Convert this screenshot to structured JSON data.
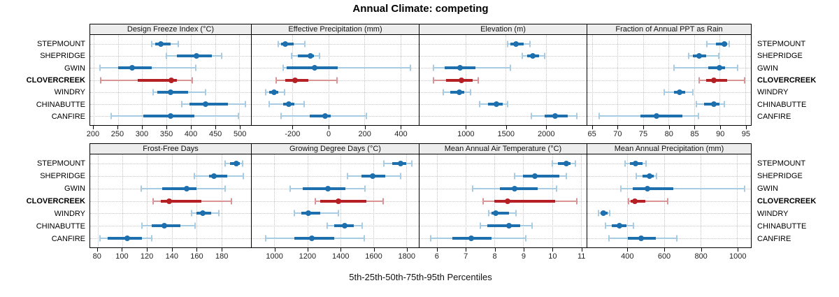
{
  "chart_data": {
    "type": "dot-interval-trellis",
    "title": "Annual Climate: competing",
    "xlabel": "5th-25th-50th-75th-95th Percentiles",
    "percentiles": [
      5,
      25,
      50,
      75,
      95
    ],
    "sites": [
      "STEPMOUNT",
      "SHEPRIDGE",
      "GWIN",
      "CLOVERCREEK",
      "WINDRY",
      "CHINABUTTE",
      "CANFIRE"
    ],
    "highlight_site": "CLOVERCREEK",
    "colors": {
      "blue": "#1d6fae",
      "blue_light": "#a8cce4",
      "red": "#b52025",
      "red_light": "#d99595",
      "strip_bg": "#ededed",
      "grid": "#c6c6c6"
    },
    "legend": "grid on, dotted; each row: 5th-95th light whisker with end caps, 25th-75th thick bar, dot at median",
    "panels": [
      {
        "title": "Design Freeze Index (°C)",
        "grid_row": 0,
        "grid_col": 0,
        "xlim": [
          193,
          524
        ],
        "ticks": [
          200,
          250,
          300,
          350,
          400,
          450,
          500
        ],
        "values": {
          "STEPMOUNT": [
            319,
            327,
            338,
            359,
            375
          ],
          "SHEPRIDGE": [
            350,
            371,
            412,
            443,
            464
          ],
          "GWIN": [
            213,
            250,
            280,
            319,
            410
          ],
          "CLOVERCREEK": [
            214,
            291,
            360,
            372,
            403
          ],
          "WINDRY": [
            322,
            331,
            358,
            395,
            430
          ],
          "CHINABUTTE": [
            382,
            398,
            430,
            476,
            513
          ],
          "CANFIRE": [
            236,
            302,
            358,
            407,
            498
          ]
        }
      },
      {
        "title": "Effective Precipitation (mm)",
        "grid_row": 0,
        "grid_col": 1,
        "xlim": [
          -426,
          503
        ],
        "ticks": [
          -200,
          0,
          200,
          400
        ],
        "values": {
          "STEPMOUNT": [
            -278,
            -262,
            -238,
            -192,
            -130
          ],
          "SHEPRIDGE": [
            -206,
            -168,
            -100,
            -80,
            -50
          ],
          "GWIN": [
            -250,
            -232,
            -77,
            51,
            458
          ],
          "CLOVERCREEK": [
            -290,
            -238,
            -185,
            -110,
            50
          ],
          "WINDRY": [
            -348,
            -329,
            -303,
            -277,
            -245
          ],
          "CHINABUTTE": [
            -330,
            -252,
            -219,
            -187,
            -135
          ],
          "CANFIRE": [
            -264,
            -103,
            -19,
            13,
            213
          ]
        }
      },
      {
        "title": "Elevation (m)",
        "grid_row": 0,
        "grid_col": 2,
        "xlim": [
          423,
          2511
        ],
        "ticks": [
          1000,
          1500,
          2000
        ],
        "values": {
          "STEPMOUNT": [
            1520,
            1560,
            1630,
            1725,
            1800
          ],
          "SHEPRIDGE": [
            1710,
            1770,
            1840,
            1915,
            1985
          ],
          "GWIN": [
            600,
            740,
            930,
            1120,
            1560
          ],
          "CLOVERCREEK": [
            600,
            755,
            945,
            1090,
            1160
          ],
          "WINDRY": [
            720,
            810,
            920,
            985,
            1065
          ],
          "CHINABUTTE": [
            1175,
            1275,
            1385,
            1465,
            1520
          ],
          "CANFIRE": [
            1825,
            1985,
            2115,
            2275,
            2390
          ]
        }
      },
      {
        "title": "Fraction of Annual PPT as Rain",
        "grid_row": 0,
        "grid_col": 3,
        "xlim": [
          64.1,
          96.1
        ],
        "ticks": [
          65,
          70,
          75,
          80,
          85,
          90,
          95
        ],
        "values": {
          "STEPMOUNT": [
            87.5,
            89.3,
            90.9,
            91.4,
            91.8
          ],
          "SHEPRIDGE": [
            83.9,
            84.8,
            86.0,
            87.3,
            89.8
          ],
          "GWIN": [
            81.0,
            87.7,
            89.9,
            91.0,
            93.5
          ],
          "CLOVERCREEK": [
            86.0,
            87.3,
            88.9,
            91.4,
            94.9
          ],
          "WINDRY": [
            79.1,
            81.1,
            82.1,
            83.2,
            84.8
          ],
          "CHINABUTTE": [
            85.5,
            87.0,
            88.9,
            90.0,
            90.9
          ],
          "CANFIRE": [
            66.4,
            74.5,
            77.7,
            82.7,
            85.8
          ]
        }
      },
      {
        "title": "Frost-Free Days",
        "grid_row": 1,
        "grid_col": 0,
        "xlim": [
          74,
          204
        ],
        "ticks": [
          80,
          100,
          120,
          140,
          160,
          180
        ],
        "values": {
          "STEPMOUNT": [
            183,
            187,
            192,
            195,
            197
          ],
          "SHEPRIDGE": [
            158,
            170,
            174,
            185,
            198
          ],
          "GWIN": [
            115,
            132,
            152,
            160,
            183
          ],
          "CLOVERCREEK": [
            125,
            131,
            138,
            164,
            188
          ],
          "WINDRY": [
            156,
            160,
            165,
            172,
            178
          ],
          "CHINABUTTE": [
            116,
            124,
            134,
            147,
            159
          ],
          "CANFIRE": [
            82,
            88,
            104,
            116,
            124
          ]
        }
      },
      {
        "title": "Growing Degree Days (°C)",
        "grid_row": 1,
        "grid_col": 1,
        "xlim": [
          862,
          1877
        ],
        "ticks": [
          1000,
          1200,
          1400,
          1600,
          1800
        ],
        "values": {
          "STEPMOUNT": [
            1665,
            1715,
            1765,
            1800,
            1835
          ],
          "SHEPRIDGE": [
            1445,
            1530,
            1598,
            1672,
            1765
          ],
          "GWIN": [
            1095,
            1172,
            1325,
            1432,
            1548
          ],
          "CLOVERCREEK": [
            1247,
            1277,
            1388,
            1560,
            1662
          ],
          "WINDRY": [
            1123,
            1165,
            1205,
            1277,
            1390
          ],
          "CHINABUTTE": [
            1320,
            1362,
            1426,
            1482,
            1531
          ],
          "CANFIRE": [
            945,
            1123,
            1228,
            1362,
            1546
          ]
        }
      },
      {
        "title": "Mean Annual Air Temperature (°C)",
        "grid_row": 1,
        "grid_col": 2,
        "xlim": [
          5.4,
          11.2
        ],
        "ticks": [
          6,
          7,
          8,
          9,
          10,
          11
        ],
        "values": {
          "STEPMOUNT": [
            10.0,
            10.2,
            10.5,
            10.65,
            10.8
          ],
          "SHEPRIDGE": [
            8.7,
            9.0,
            9.4,
            10.25,
            10.5
          ],
          "GWIN": [
            7.25,
            8.2,
            8.7,
            9.5,
            10.15
          ],
          "CLOVERCREEK": [
            7.6,
            8.0,
            8.45,
            10.1,
            10.85
          ],
          "WINDRY": [
            7.8,
            7.9,
            8.05,
            8.5,
            8.75
          ],
          "CHINABUTTE": [
            7.5,
            7.75,
            8.5,
            8.9,
            9.3
          ],
          "CANFIRE": [
            5.8,
            6.55,
            7.2,
            7.9,
            9.1
          ]
        }
      },
      {
        "title": "Mean Annual Precipitation (mm)",
        "grid_row": 1,
        "grid_col": 3,
        "xlim": [
          182,
          1075
        ],
        "ticks": [
          400,
          600,
          800,
          1000
        ],
        "values": {
          "STEPMOUNT": [
            387,
            413,
            445,
            482,
            503
          ],
          "SHEPRIDGE": [
            451,
            482,
            520,
            543,
            559
          ],
          "GWIN": [
            366,
            429,
            512,
            651,
            1042
          ],
          "CLOVERCREEK": [
            406,
            420,
            442,
            499,
            619
          ],
          "WINDRY": [
            243,
            254,
            271,
            293,
            305
          ],
          "CHINABUTTE": [
            283,
            315,
            356,
            397,
            435
          ],
          "CANFIRE": [
            302,
            404,
            477,
            556,
            670
          ]
        }
      }
    ]
  }
}
